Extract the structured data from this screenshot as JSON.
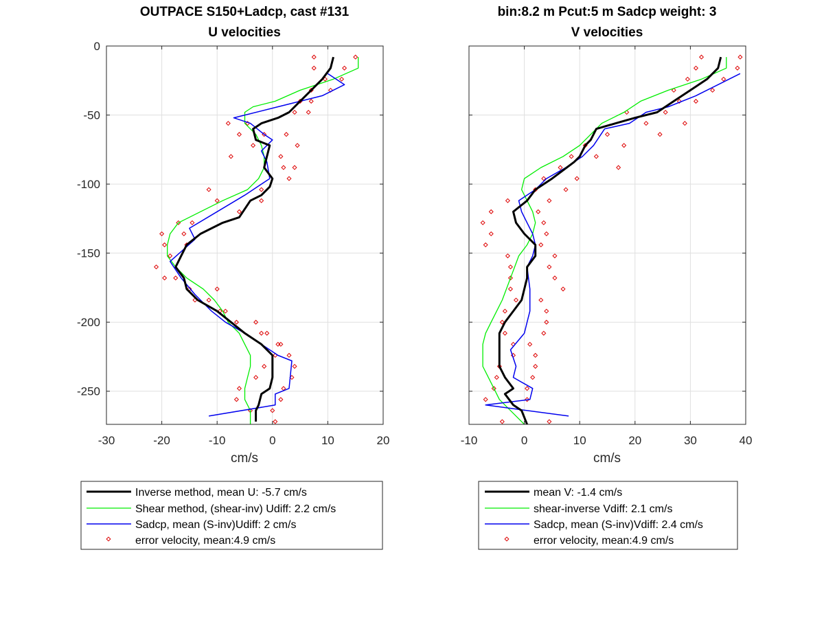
{
  "chart_data": [
    {
      "type": "line",
      "title_line1": "OUTPACE S150+Ladcp, cast #131",
      "title_line2": "U velocities",
      "xlabel": "cm/s",
      "ylabel": "",
      "xlim": [
        -30,
        20
      ],
      "ylim": [
        -274,
        0
      ],
      "xticks": [
        -30,
        -20,
        -10,
        0,
        10,
        20
      ],
      "yticks": [
        0,
        -50,
        -100,
        -150,
        -200,
        -250
      ],
      "grid": true,
      "legend_position": "below",
      "series": [
        {
          "name": "Inverse method, mean U:  -5.7 cm/s",
          "kind": "line",
          "color": "#000000",
          "width": 3,
          "x": [
            11,
            10.5,
            9,
            7,
            5,
            3,
            1,
            -2,
            -3.5,
            -3,
            -0.5,
            -1,
            -1.5,
            0,
            -0.5,
            -2,
            -4,
            -6,
            -9,
            -13,
            -15.5,
            -16.5,
            -17.5,
            -16,
            -15.5,
            -13.5,
            -10,
            -7.5,
            -5,
            -2,
            0,
            0,
            -0.5,
            -2,
            -2.5,
            -3,
            -3
          ],
          "y": [
            -8,
            -16,
            -24,
            -32,
            -40,
            -48,
            -52,
            -56,
            -60,
            -68,
            -72,
            -80,
            -88,
            -96,
            -102,
            -108,
            -112,
            -124,
            -128,
            -136,
            -144,
            -152,
            -160,
            -168,
            -176,
            -184,
            -192,
            -200,
            -208,
            -216,
            -224,
            -240,
            -248,
            -252,
            -260,
            -264,
            -272
          ]
        },
        {
          "name": "Shear method, (shear-inv)  Udiff:  2.2 cm/s",
          "kind": "line",
          "color": "#00ee00",
          "width": 1.3,
          "x": [
            15.5,
            15.5,
            11,
            5,
            0.5,
            -3.5,
            -5,
            -5,
            -3,
            -2,
            -1.5,
            -1.5,
            -2.5,
            -4.5,
            -9,
            -13,
            -17,
            -18.5,
            -19,
            -19,
            -17.5,
            -15.5,
            -12.5,
            -10.5,
            -9,
            -8,
            -6,
            -5,
            -4,
            -4,
            -4.5,
            -5,
            -5,
            -4,
            -4
          ],
          "y": [
            -8,
            -16,
            -24,
            -32,
            -40,
            -44,
            -48,
            -56,
            -64,
            -72,
            -80,
            -88,
            -96,
            -104,
            -112,
            -120,
            -128,
            -136,
            -144,
            -152,
            -160,
            -168,
            -176,
            -184,
            -192,
            -200,
            -208,
            -216,
            -224,
            -232,
            -240,
            -248,
            -256,
            -264,
            -274
          ]
        },
        {
          "name": "Sadcp, mean (S-inv)Udiff: 2 cm/s",
          "kind": "line",
          "color": "#0000ee",
          "width": 1.5,
          "x": [
            10,
            13,
            9,
            1,
            -7,
            -4,
            -1.5,
            0,
            -2,
            -1,
            -0.5,
            -2,
            -5,
            -10,
            -15,
            -14,
            -18.5,
            -16.5,
            -14,
            -11,
            -8.5,
            -5,
            -2,
            1,
            3.5,
            3,
            0.5,
            0.5,
            -11.5
          ],
          "y": [
            -20,
            -28,
            -36,
            -44,
            -52,
            -56,
            -64,
            -68,
            -76,
            -84,
            -96,
            -100,
            -108,
            -120,
            -132,
            -140,
            -156,
            -168,
            -180,
            -192,
            -200,
            -208,
            -216,
            -224,
            -228,
            -248,
            -252,
            -260,
            -268
          ]
        },
        {
          "name": "error velocity, mean:4.9 cm/s",
          "kind": "markers",
          "color": "#dd0000",
          "x": [
            7.5,
            15,
            7.5,
            13,
            9.5,
            12.5,
            7,
            10.5,
            5,
            7,
            4,
            6.5,
            -8,
            -4.5,
            -6,
            -1.5,
            2.5,
            4.5,
            -3.5,
            -7.5,
            1.5,
            4,
            2,
            3,
            -11.5,
            -2,
            -10,
            -2,
            -6,
            -17,
            -14.5,
            -20,
            -16,
            -15.5,
            -19.5,
            -18.5,
            -21,
            -19.5,
            -17.5,
            -10,
            -15,
            -11.5,
            -14,
            -9.5,
            -8.5,
            -6.5,
            -3,
            -2,
            -1,
            1,
            1.5,
            3,
            0.5,
            -1.5,
            4,
            3.5,
            -3,
            2,
            -6,
            1.5,
            -6.5,
            0,
            -4,
            0.5
          ],
          "y": [
            -8,
            -8,
            -16,
            -16,
            -24,
            -24,
            -32,
            -32,
            -40,
            -40,
            -48,
            -48,
            -56,
            -56,
            -64,
            -64,
            -64,
            -72,
            -72,
            -80,
            -80,
            -88,
            -88,
            -96,
            -104,
            -104,
            -112,
            -112,
            -120,
            -128,
            -128,
            -136,
            -136,
            -144,
            -144,
            -152,
            -160,
            -168,
            -168,
            -176,
            -176,
            -184,
            -184,
            -192,
            -192,
            -200,
            -200,
            -208,
            -208,
            -216,
            -216,
            -224,
            -224,
            -232,
            -232,
            -240,
            -240,
            -248,
            -248,
            -256,
            -256,
            -264,
            -264,
            -272
          ]
        }
      ]
    },
    {
      "type": "line",
      "title_line1": "bin:8.2 m  Pcut:5 m  Sadcp weight: 3",
      "title_line2": "V velocities",
      "xlabel": "cm/s",
      "ylabel": "",
      "xlim": [
        -10,
        40
      ],
      "ylim": [
        -274,
        0
      ],
      "xticks": [
        -10,
        0,
        10,
        20,
        30,
        40
      ],
      "yticks": [
        0,
        -50,
        -100,
        -150,
        -200,
        -250
      ],
      "grid": true,
      "legend_position": "below",
      "series": [
        {
          "name": "mean V:  -1.4 cm/s",
          "kind": "line",
          "color": "#000000",
          "width": 3,
          "x": [
            35.5,
            35,
            33,
            30,
            27,
            24,
            20,
            16.5,
            13,
            12,
            11,
            10,
            9,
            5,
            2,
            0.5,
            -2,
            -1.5,
            0,
            2,
            2,
            0.5,
            0.5,
            0,
            -0.5,
            -2,
            -3.5,
            -4.5,
            -4.5,
            -4.5,
            -4.5,
            -3.5,
            -2,
            -3.5,
            -2,
            -0.5,
            0.5
          ],
          "y": [
            -8,
            -16,
            -24,
            -32,
            -40,
            -48,
            -52,
            -56,
            -60,
            -68,
            -72,
            -80,
            -84,
            -96,
            -104,
            -112,
            -120,
            -128,
            -136,
            -144,
            -152,
            -160,
            -168,
            -176,
            -184,
            -192,
            -200,
            -208,
            -216,
            -224,
            -232,
            -240,
            -248,
            -252,
            -260,
            -264,
            -274
          ]
        },
        {
          "name": "shear-inverse Vdiff:  2.1 cm/s",
          "kind": "line",
          "color": "#00ee00",
          "width": 1.3,
          "x": [
            36.5,
            36.5,
            32,
            26,
            21,
            18,
            14,
            12,
            10,
            7,
            3,
            0,
            -0.5,
            0.5,
            1.5,
            2,
            1.5,
            0.5,
            -1,
            -2.5,
            -4,
            -6,
            -7,
            -7.5,
            -7.5,
            -6.5,
            -5.5,
            -4.5,
            -2.5,
            0
          ],
          "y": [
            -8,
            -16,
            -24,
            -32,
            -40,
            -48,
            -56,
            -64,
            -72,
            -80,
            -88,
            -96,
            -104,
            -112,
            -120,
            -128,
            -136,
            -144,
            -152,
            -168,
            -184,
            -200,
            -208,
            -216,
            -232,
            -240,
            -248,
            -256,
            -264,
            -274
          ]
        },
        {
          "name": "Sadcp, mean (S-inv)Vdiff: 2.4 cm/s",
          "kind": "line",
          "color": "#0000ee",
          "width": 1.5,
          "x": [
            39,
            35,
            31,
            26,
            22,
            19,
            14.5,
            12.5,
            10.5,
            7.5,
            4,
            2,
            -1,
            -0.5,
            0.5,
            1.5,
            2,
            1.5,
            0.5,
            1,
            1,
            0.5,
            0,
            -2.5,
            -1.5,
            -2,
            1.5,
            1,
            -7,
            8
          ],
          "y": [
            -20,
            -28,
            -36,
            -44,
            -48,
            -56,
            -60,
            -72,
            -80,
            -88,
            -96,
            -104,
            -112,
            -120,
            -128,
            -136,
            -144,
            -152,
            -160,
            -176,
            -192,
            -200,
            -208,
            -220,
            -232,
            -240,
            -248,
            -256,
            -260,
            -268
          ]
        },
        {
          "name": "error velocity, mean:4.9 cm/s",
          "kind": "markers",
          "color": "#dd0000",
          "x": [
            32,
            39,
            31,
            38.5,
            29.5,
            36,
            27,
            34,
            28,
            31,
            18.5,
            25.5,
            22,
            29,
            15,
            24.5,
            11,
            18,
            8.5,
            13,
            6.5,
            17,
            3.5,
            9.5,
            2,
            7.5,
            -3,
            4.5,
            -6,
            2.5,
            -7.5,
            3.5,
            -6,
            4,
            -7,
            3,
            -3,
            5.5,
            -2.5,
            4.5,
            -2.5,
            5.5,
            -2.5,
            7,
            -1.5,
            3,
            -3.5,
            4,
            -4,
            4,
            -3.5,
            3.5,
            -2,
            1,
            -2,
            2,
            -4.5,
            2,
            -5,
            1.5,
            -5.5,
            0.5,
            -7,
            0.5,
            -4,
            4.5
          ],
          "y": [
            -8,
            -8,
            -16,
            -16,
            -24,
            -24,
            -32,
            -32,
            -40,
            -40,
            -48,
            -48,
            -56,
            -56,
            -64,
            -64,
            -72,
            -72,
            -80,
            -80,
            -88,
            -88,
            -96,
            -96,
            -104,
            -104,
            -112,
            -112,
            -120,
            -120,
            -128,
            -128,
            -136,
            -136,
            -144,
            -144,
            -152,
            -152,
            -160,
            -160,
            -168,
            -168,
            -176,
            -176,
            -184,
            -184,
            -192,
            -192,
            -200,
            -200,
            -208,
            -208,
            -216,
            -216,
            -224,
            -224,
            -232,
            -232,
            -240,
            -240,
            -248,
            -248,
            -256,
            -256,
            -272,
            -272
          ]
        }
      ]
    }
  ]
}
